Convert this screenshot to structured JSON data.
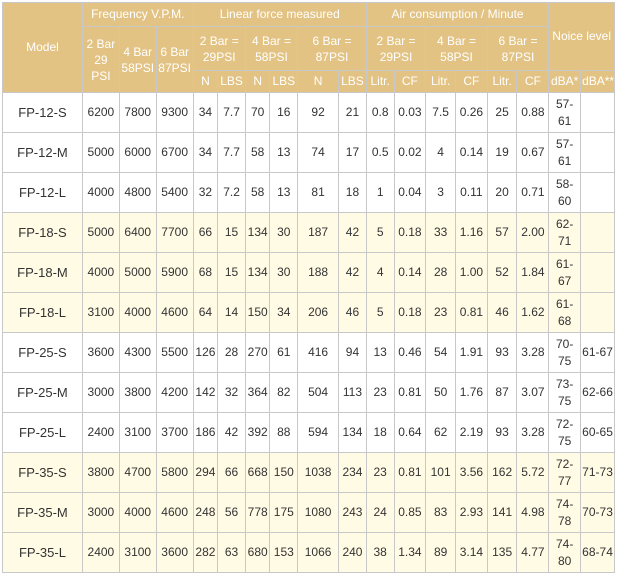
{
  "header": {
    "model": "Model",
    "frequency": "Frequency V.P.M.",
    "linear_force": "Linear force measured",
    "air_consumption": "Air consumption / Minute",
    "noise_level": "Noice level",
    "freq_cols": [
      "2 Bar 29 PSI",
      "4 Bar 58PSI",
      "6 Bar 87PSI"
    ],
    "pressure_cols": [
      "2 Bar = 29PSI",
      "4 Bar = 58PSI",
      "6 Bar = 87PSI"
    ],
    "air_pressure_cols": [
      "2 Bar = 29PSI",
      "4 Bar = 58PSI",
      "6 Bar = 87PSI"
    ],
    "force_units": [
      "N",
      "LBS"
    ],
    "air_units": [
      "Litr.",
      "CF"
    ],
    "noise_units": [
      "dBA*",
      "dBA**"
    ]
  },
  "rows": [
    {
      "model": "FP-12-S",
      "f2": "6200",
      "f4": "7800",
      "f6": "9300",
      "n2": "34",
      "l2": "7.7",
      "n4": "70",
      "l4": "16",
      "n6": "92",
      "l6": "21",
      "a2": "0.8",
      "c2": "0.03",
      "a4": "7.5",
      "c4": "0.26",
      "a6": "25",
      "c6": "0.88",
      "dba1": "57-61",
      "dba2": ""
    },
    {
      "model": "FP-12-M",
      "f2": "5000",
      "f4": "6000",
      "f6": "6700",
      "n2": "34",
      "l2": "7.7",
      "n4": "58",
      "l4": "13",
      "n6": "74",
      "l6": "17",
      "a2": "0.5",
      "c2": "0.02",
      "a4": "4",
      "c4": "0.14",
      "a6": "19",
      "c6": "0.67",
      "dba1": "57-61",
      "dba2": ""
    },
    {
      "model": "FP-12-L",
      "f2": "4000",
      "f4": "4800",
      "f6": "5400",
      "n2": "32",
      "l2": "7.2",
      "n4": "58",
      "l4": "13",
      "n6": "81",
      "l6": "18",
      "a2": "1",
      "c2": "0.04",
      "a4": "3",
      "c4": "0.11",
      "a6": "20",
      "c6": "0.71",
      "dba1": "58-60",
      "dba2": ""
    },
    {
      "model": "FP-18-S",
      "f2": "5000",
      "f4": "6400",
      "f6": "7700",
      "n2": "66",
      "l2": "15",
      "n4": "134",
      "l4": "30",
      "n6": "187",
      "l6": "42",
      "a2": "5",
      "c2": "0.18",
      "a4": "33",
      "c4": "1.16",
      "a6": "57",
      "c6": "2.00",
      "dba1": "62-71",
      "dba2": ""
    },
    {
      "model": "FP-18-M",
      "f2": "4000",
      "f4": "5000",
      "f6": "5900",
      "n2": "68",
      "l2": "15",
      "n4": "134",
      "l4": "30",
      "n6": "188",
      "l6": "42",
      "a2": "4",
      "c2": "0.14",
      "a4": "28",
      "c4": "1.00",
      "a6": "52",
      "c6": "1.84",
      "dba1": "61-67",
      "dba2": ""
    },
    {
      "model": "FP-18-L",
      "f2": "3100",
      "f4": "4000",
      "f6": "4600",
      "n2": "64",
      "l2": "14",
      "n4": "150",
      "l4": "34",
      "n6": "206",
      "l6": "46",
      "a2": "5",
      "c2": "0.18",
      "a4": "23",
      "c4": "0.81",
      "a6": "46",
      "c6": "1.62",
      "dba1": "61-68",
      "dba2": ""
    },
    {
      "model": "FP-25-S",
      "f2": "3600",
      "f4": "4300",
      "f6": "5500",
      "n2": "126",
      "l2": "28",
      "n4": "270",
      "l4": "61",
      "n6": "416",
      "l6": "94",
      "a2": "13",
      "c2": "0.46",
      "a4": "54",
      "c4": "1.91",
      "a6": "93",
      "c6": "3.28",
      "dba1": "70-75",
      "dba2": "61-67"
    },
    {
      "model": "FP-25-M",
      "f2": "3000",
      "f4": "3800",
      "f6": "4200",
      "n2": "142",
      "l2": "32",
      "n4": "364",
      "l4": "82",
      "n6": "504",
      "l6": "113",
      "a2": "23",
      "c2": "0.81",
      "a4": "50",
      "c4": "1.76",
      "a6": "87",
      "c6": "3.07",
      "dba1": "73-75",
      "dba2": "62-66"
    },
    {
      "model": "FP-25-L",
      "f2": "2400",
      "f4": "3100",
      "f6": "3700",
      "n2": "186",
      "l2": "42",
      "n4": "392",
      "l4": "88",
      "n6": "594",
      "l6": "134",
      "a2": "18",
      "c2": "0.64",
      "a4": "62",
      "c4": "2.19",
      "a6": "93",
      "c6": "3.28",
      "dba1": "72-75",
      "dba2": "60-65"
    },
    {
      "model": "FP-35-S",
      "f2": "3800",
      "f4": "4700",
      "f6": "5800",
      "n2": "294",
      "l2": "66",
      "n4": "668",
      "l4": "150",
      "n6": "1038",
      "l6": "234",
      "a2": "23",
      "c2": "0.81",
      "a4": "101",
      "c4": "3.56",
      "a6": "162",
      "c6": "5.72",
      "dba1": "72-77",
      "dba2": "71-73"
    },
    {
      "model": "FP-35-M",
      "f2": "3000",
      "f4": "4000",
      "f6": "4600",
      "n2": "248",
      "l2": "56",
      "n4": "778",
      "l4": "175",
      "n6": "1080",
      "l6": "243",
      "a2": "24",
      "c2": "0.85",
      "a4": "83",
      "c4": "2.93",
      "a6": "141",
      "c6": "4.98",
      "dba1": "74-78",
      "dba2": "70-73"
    },
    {
      "model": "FP-35-L",
      "f2": "2400",
      "f4": "3100",
      "f6": "3600",
      "n2": "282",
      "l2": "63",
      "n4": "680",
      "l4": "153",
      "n6": "1066",
      "l6": "240",
      "a2": "38",
      "c2": "1.34",
      "a4": "89",
      "c4": "3.14",
      "a6": "135",
      "c6": "4.77",
      "dba1": "74-80",
      "dba2": "68-74"
    }
  ]
}
